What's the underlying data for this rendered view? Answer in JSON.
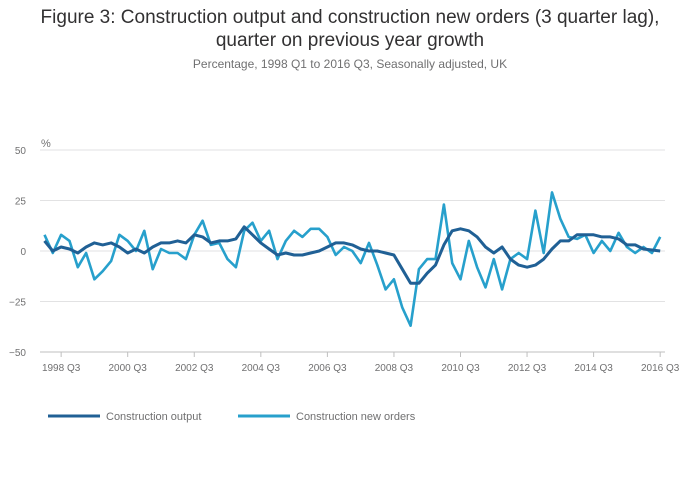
{
  "chart_data": {
    "type": "line",
    "title_line1": "Figure 3: Construction output and construction new orders (3 quarter lag),",
    "title_line2": "quarter on previous year growth",
    "subtitle": "Percentage, 1998 Q1 to 2016 Q3, Seasonally adjusted, UK",
    "ylabel": "%",
    "ylim": [
      -50,
      50
    ],
    "yticks": [
      "50",
      "25",
      "0",
      "−25",
      "−50"
    ],
    "ytick_values": [
      50,
      25,
      0,
      -25,
      -50
    ],
    "xticks": [
      "1998 Q3",
      "2000 Q3",
      "2002 Q3",
      "2004 Q3",
      "2006 Q3",
      "2008 Q3",
      "2010 Q3",
      "2012 Q3",
      "2014 Q3",
      "2016 Q3"
    ],
    "xtick_index": [
      2,
      10,
      18,
      26,
      34,
      42,
      50,
      58,
      66,
      74
    ],
    "n_quarters": 75,
    "grid": true,
    "legend_position": "bottom-left",
    "series": [
      {
        "name": "Construction output",
        "color": "#206095",
        "values": [
          5,
          0,
          2,
          1,
          -1,
          2,
          4,
          3,
          4,
          2,
          -1,
          1,
          -1,
          2,
          4,
          4,
          5,
          4,
          8,
          7,
          4,
          5,
          5,
          6,
          12,
          8,
          4,
          1,
          -2,
          -1,
          -2,
          -2,
          -1,
          0,
          2,
          4,
          4,
          3,
          1,
          0,
          0,
          -1,
          -2,
          -9,
          -16,
          -16,
          -11,
          -7,
          3,
          10,
          11,
          10,
          7,
          2,
          -1,
          2,
          -4,
          -7,
          -8,
          -7,
          -4,
          1,
          5,
          5,
          8,
          8,
          8,
          7,
          7,
          6,
          3,
          3,
          1,
          0.5,
          0
        ]
      },
      {
        "name": "Construction new orders",
        "color": "#27a0cc",
        "values": [
          8,
          -1,
          8,
          5,
          -8,
          -1,
          -14,
          -10,
          -5,
          8,
          5,
          0,
          10,
          -9,
          1,
          -1,
          -1,
          -4,
          8,
          15,
          3,
          4,
          -4,
          -8,
          10,
          14,
          5,
          10,
          -4,
          5,
          10,
          7,
          11,
          11,
          7,
          -2,
          2,
          0,
          -6,
          4,
          -7,
          -19,
          -14,
          -28,
          -37,
          -9,
          -4,
          -4,
          23,
          -6,
          -14,
          5,
          -8,
          -18,
          -4,
          -19,
          -4,
          -1,
          -4,
          20,
          -1,
          29,
          16,
          7,
          6,
          8,
          -1,
          5,
          0,
          9,
          2,
          -1,
          2,
          -1,
          7
        ]
      }
    ]
  }
}
